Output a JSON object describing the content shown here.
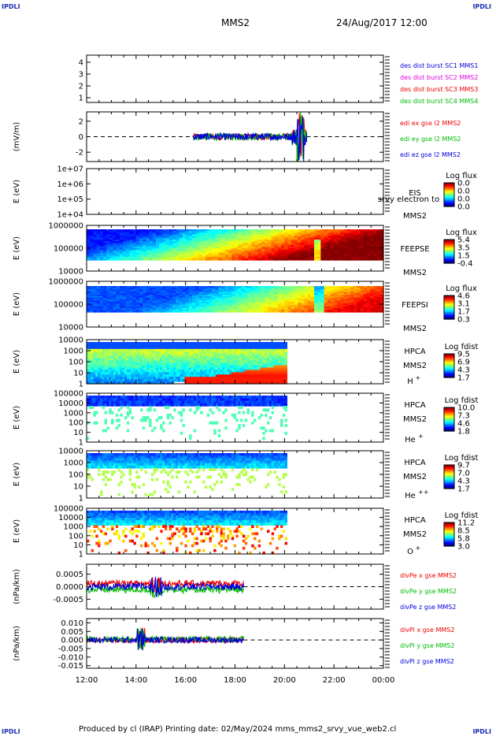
{
  "header": {
    "corner_tl": "IPDLI",
    "corner_tr": "IPDLI",
    "corner_bl": "IPDLI",
    "corner_br": "IPDLI",
    "spacecraft": "MMS2",
    "datetime": "24/Aug/2017 12:00"
  },
  "footer": {
    "text": "Produced by cl (IRAP)   Printing date: 02/May/2024   mms_mms2_srvy_vue_web2.cl"
  },
  "colors": {
    "blue": "#0000dd",
    "magenta": "#dd00dd",
    "red": "#ee0000",
    "green": "#00bb00"
  },
  "time_axis": {
    "ticks": [
      "12:00",
      "14:00",
      "16:00",
      "18:00",
      "20:00",
      "22:00",
      "00:00"
    ],
    "start_hour": 12,
    "end_hour": 24
  },
  "chart_data": [
    {
      "id": "des-dist",
      "type": "line",
      "ytick_labels": [
        "4",
        "3",
        "2",
        "1"
      ],
      "ytick_values": [
        4,
        3,
        2,
        1
      ],
      "ylim": [
        0.6,
        4.6
      ],
      "legend": [
        {
          "label": "des dist burst SC1 MMS1",
          "color": "#0000dd"
        },
        {
          "label": "des dist burst SC2 MMS2",
          "color": "#dd00dd"
        },
        {
          "label": "des dist burst SC3 MMS3",
          "color": "#ee0000"
        },
        {
          "label": "des dist burst SC4 MMS4",
          "color": "#00bb00"
        }
      ]
    },
    {
      "id": "edi-e",
      "type": "line",
      "ylabel": "(mV/m)",
      "ytick_labels": [
        "2",
        "0",
        "-2"
      ],
      "ytick_values": [
        2,
        0,
        -2
      ],
      "ylim": [
        -3.2,
        3.2
      ],
      "data_range_hours": [
        16.3,
        20.9
      ],
      "legend": [
        {
          "label": "edi ex gse l2 MMS2",
          "color": "#ee0000"
        },
        {
          "label": "edi ey gse l2 MMS2",
          "color": "#00bb00"
        },
        {
          "label": "edi ez gse l2 MMS2",
          "color": "#0000dd"
        }
      ]
    },
    {
      "id": "eis",
      "type": "heatmap",
      "ylabel": "E (eV)",
      "ytick_labels": [
        "1e+07",
        "1e+06",
        "1e+05",
        "1e+04"
      ],
      "right_labels": [
        "EIS",
        "srvy electron to",
        "MMS2"
      ],
      "cbar_title": "Log flux",
      "cbar_labels": [
        "0.0",
        "0.0",
        "0.0",
        "0.0"
      ]
    },
    {
      "id": "feepse",
      "type": "heatmap",
      "ylabel": "E (eV)",
      "ytick_labels": [
        "1000000",
        "100000",
        "10000"
      ],
      "right_labels": [
        "FEEPSE",
        "MMS2"
      ],
      "cbar_title": "Log flux",
      "cbar_labels": [
        "5.4",
        "3.5",
        "1.5",
        "-0.4"
      ],
      "data_range_hours": [
        12.0,
        24.0
      ]
    },
    {
      "id": "feepsi",
      "type": "heatmap",
      "ylabel": "E (eV)",
      "ytick_labels": [
        "1000000",
        "100000",
        "10000"
      ],
      "right_labels": [
        "FEEPSI",
        "MMS2"
      ],
      "cbar_title": "Log flux",
      "cbar_labels": [
        "4.6",
        "3.1",
        "1.7",
        "0.3"
      ],
      "data_range_hours": [
        12.0,
        24.0
      ]
    },
    {
      "id": "hpca-h",
      "type": "heatmap",
      "ylabel": "E (eV)",
      "ytick_labels": [
        "10000",
        "1000",
        "100",
        "10",
        "1"
      ],
      "right_labels": [
        "HPCA",
        "MMS2"
      ],
      "species": "H",
      "species_sup": "+",
      "cbar_title": "Log fdist",
      "cbar_labels": [
        "9.5",
        "6.9",
        "4.3",
        "1.7"
      ],
      "data_range_hours": [
        12.0,
        20.1
      ]
    },
    {
      "id": "hpca-he",
      "type": "heatmap",
      "ylabel": "E (eV)",
      "ytick_labels": [
        "100000",
        "10000",
        "1000",
        "100",
        "10",
        "1"
      ],
      "right_labels": [
        "HPCA",
        "MMS2"
      ],
      "species": "He",
      "species_sup": "+",
      "cbar_title": "Log fdist",
      "cbar_labels": [
        "10.0",
        "7.3",
        "4.6",
        "1.8"
      ],
      "data_range_hours": [
        12.0,
        20.1
      ]
    },
    {
      "id": "hpca-hepp",
      "type": "heatmap",
      "ylabel": "E (eV)",
      "ytick_labels": [
        "10000",
        "1000",
        "100",
        "10",
        "1"
      ],
      "right_labels": [
        "HPCA",
        "MMS2"
      ],
      "species": "He",
      "species_sup": "++",
      "cbar_title": "Log fdist",
      "cbar_labels": [
        "9.7",
        "7.0",
        "4.3",
        "1.7"
      ],
      "data_range_hours": [
        12.0,
        20.1
      ]
    },
    {
      "id": "hpca-o",
      "type": "heatmap",
      "ylabel": "E (eV)",
      "ytick_labels": [
        "100000",
        "10000",
        "1000",
        "100",
        "10",
        "1"
      ],
      "right_labels": [
        "HPCA",
        "MMS2"
      ],
      "species": "O",
      "species_sup": "+",
      "cbar_title": "Log fdist",
      "cbar_labels": [
        "11.2",
        "8.5",
        "5.8",
        "3.0"
      ],
      "data_range_hours": [
        12.0,
        20.1
      ]
    },
    {
      "id": "divpe",
      "type": "line",
      "ylabel": "(nPa/km)",
      "ytick_labels": [
        "0.0005",
        "0.0000",
        "-0.0005"
      ],
      "ytick_values": [
        0.0005,
        0,
        -0.0005
      ],
      "ylim": [
        -0.0009,
        0.0009
      ],
      "data_range_hours": [
        12.0,
        18.35
      ],
      "legend": [
        {
          "label": "divPe x gse MMS2",
          "color": "#ee0000"
        },
        {
          "label": "divPe y gse MMS2",
          "color": "#00bb00"
        },
        {
          "label": "divPe z gse MMS2",
          "color": "#0000dd"
        }
      ]
    },
    {
      "id": "divpi",
      "type": "line",
      "ylabel": "(nPa/km)",
      "ytick_labels": [
        "0.010",
        "0.005",
        "0.000",
        "-0.005",
        "-0.010",
        "-0.015"
      ],
      "ytick_values": [
        0.01,
        0.005,
        0,
        -0.005,
        -0.01,
        -0.015
      ],
      "ylim": [
        -0.0165,
        0.0125
      ],
      "data_range_hours": [
        12.0,
        18.35
      ],
      "legend": [
        {
          "label": "divPi x gse MMS2",
          "color": "#ee0000"
        },
        {
          "label": "divPi y gse MMS2",
          "color": "#00bb00"
        },
        {
          "label": "divPi z gse MMS2",
          "color": "#0000dd"
        }
      ]
    }
  ]
}
